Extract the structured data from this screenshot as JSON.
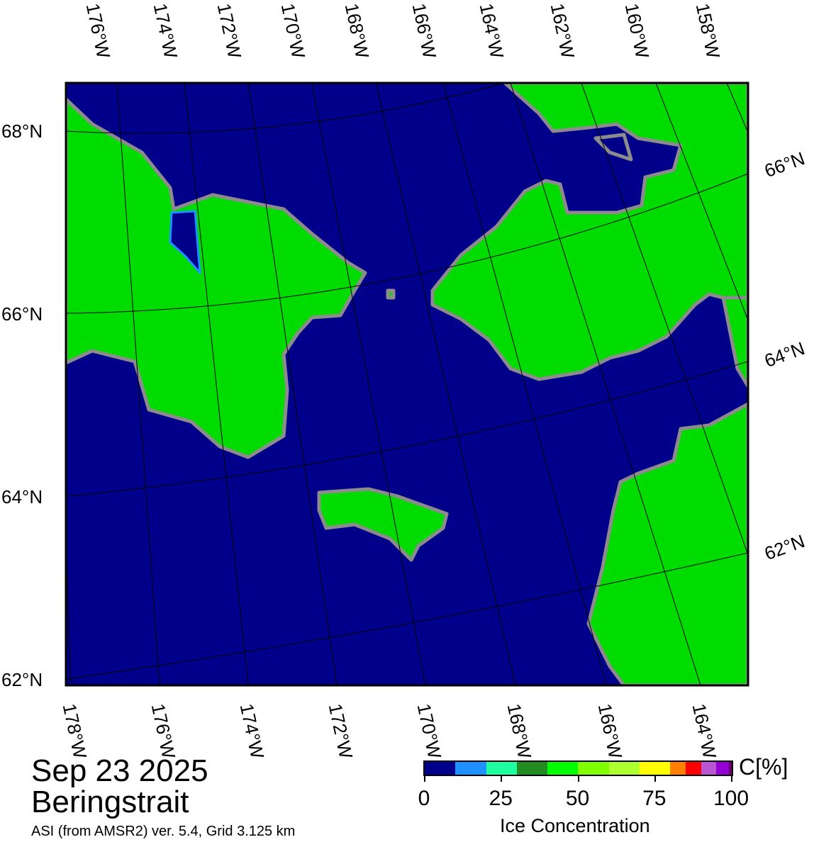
{
  "title": {
    "date": "Sep 23 2025",
    "region": "Beringstrait",
    "subtitle": "ASI (from AMSR2) ver. 5.4,  Grid 3.125 km"
  },
  "colors": {
    "ocean": "#00008b",
    "land": "#00dc00",
    "coast": "#8c8c8c"
  },
  "graticule": {
    "top_lon_labels": [
      "176°W",
      "174°W",
      "172°W",
      "170°W",
      "168°W",
      "166°W",
      "164°W",
      "162°W",
      "160°W",
      "158°W"
    ],
    "bottom_lon_labels": [
      "178°W",
      "176°W",
      "174°W",
      "172°W",
      "170°W",
      "168°W",
      "166°W",
      "164°W"
    ],
    "left_lat_labels": [
      "68°N",
      "66°N",
      "64°N",
      "62°N"
    ],
    "right_lat_labels": [
      "66°N",
      "64°N",
      "62°N"
    ]
  },
  "colorbar": {
    "unit": "C[%]",
    "label": "Ice Concentration",
    "ticks": [
      "0",
      "25",
      "50",
      "75",
      "100"
    ],
    "bins": [
      {
        "from": 0,
        "to": 10,
        "color": "#00008b"
      },
      {
        "from": 10,
        "to": 20,
        "color": "#1e90ff"
      },
      {
        "from": 20,
        "to": 30,
        "color": "#1effa0"
      },
      {
        "from": 30,
        "to": 40,
        "color": "#228b22"
      },
      {
        "from": 40,
        "to": 50,
        "color": "#00ff00"
      },
      {
        "from": 50,
        "to": 60,
        "color": "#7fff00"
      },
      {
        "from": 60,
        "to": 70,
        "color": "#adff2f"
      },
      {
        "from": 70,
        "to": 80,
        "color": "#ffff00"
      },
      {
        "from": 80,
        "to": 85,
        "color": "#ff8000"
      },
      {
        "from": 85,
        "to": 90,
        "color": "#ff0000"
      },
      {
        "from": 90,
        "to": 95,
        "color": "#ba55d3"
      },
      {
        "from": 95,
        "to": 99,
        "color": "#9400d3"
      },
      {
        "from": 99,
        "to": 100,
        "color": "#6a006a"
      }
    ]
  }
}
